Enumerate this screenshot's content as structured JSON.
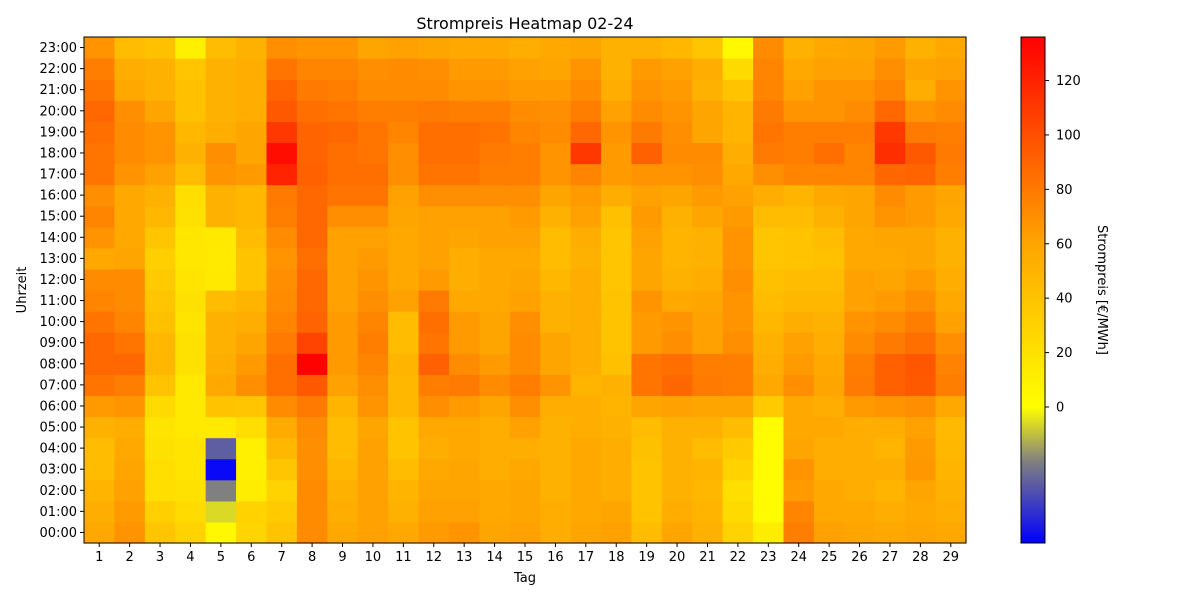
{
  "chart_data": {
    "type": "heatmap",
    "title": "Strompreis Heatmap 02-24",
    "xlabel": "Tag",
    "ylabel": "Uhrzeit",
    "colorbar_label": "Strompreis [€/MWh]",
    "colorbar_ticks": [
      "0",
      "20",
      "40",
      "60",
      "80",
      "100",
      "120"
    ],
    "colorbar_range": [
      -50,
      136
    ],
    "colormap": [
      "#0000ff",
      "#808080",
      "#ffff00",
      "#ffa500",
      "#ff0000"
    ],
    "colormap_stops": [
      -50,
      -20,
      0,
      60,
      136
    ],
    "x": [
      "1",
      "2",
      "3",
      "4",
      "5",
      "6",
      "7",
      "8",
      "9",
      "10",
      "11",
      "12",
      "13",
      "14",
      "15",
      "16",
      "17",
      "18",
      "19",
      "20",
      "21",
      "22",
      "23",
      "24",
      "25",
      "26",
      "27",
      "28",
      "29"
    ],
    "y": [
      "00:00",
      "01:00",
      "02:00",
      "03:00",
      "04:00",
      "05:00",
      "06:00",
      "07:00",
      "08:00",
      "09:00",
      "10:00",
      "11:00",
      "12:00",
      "13:00",
      "14:00",
      "15:00",
      "16:00",
      "17:00",
      "18:00",
      "19:00",
      "20:00",
      "21:00",
      "22:00",
      "23:00"
    ],
    "values": [
      [
        58,
        68,
        38,
        30,
        5,
        28,
        40,
        72,
        58,
        62,
        58,
        65,
        68,
        60,
        62,
        55,
        60,
        62,
        45,
        60,
        52,
        30,
        12,
        78,
        62,
        60,
        58,
        60,
        58
      ],
      [
        55,
        65,
        32,
        24,
        -6,
        30,
        35,
        72,
        55,
        62,
        52,
        62,
        62,
        58,
        60,
        55,
        58,
        60,
        40,
        55,
        50,
        25,
        3,
        75,
        58,
        58,
        55,
        58,
        55
      ],
      [
        50,
        62,
        22,
        20,
        -20,
        12,
        30,
        72,
        52,
        62,
        50,
        60,
        60,
        58,
        60,
        52,
        58,
        55,
        40,
        52,
        48,
        22,
        3,
        65,
        58,
        55,
        50,
        60,
        52
      ],
      [
        45,
        60,
        22,
        18,
        -48,
        10,
        38,
        70,
        48,
        62,
        45,
        58,
        60,
        55,
        58,
        52,
        58,
        55,
        40,
        52,
        50,
        30,
        3,
        68,
        55,
        55,
        55,
        66,
        50
      ],
      [
        45,
        58,
        20,
        18,
        -28,
        10,
        48,
        70,
        45,
        62,
        40,
        55,
        58,
        55,
        55,
        52,
        58,
        55,
        42,
        52,
        45,
        35,
        3,
        60,
        55,
        55,
        50,
        65,
        48
      ],
      [
        52,
        55,
        18,
        15,
        15,
        22,
        56,
        72,
        45,
        60,
        40,
        58,
        58,
        55,
        62,
        52,
        55,
        52,
        45,
        52,
        52,
        45,
        3,
        58,
        58,
        55,
        55,
        62,
        46
      ],
      [
        65,
        68,
        25,
        15,
        40,
        38,
        72,
        80,
        50,
        68,
        48,
        70,
        65,
        60,
        70,
        55,
        55,
        50,
        60,
        62,
        60,
        60,
        35,
        58,
        55,
        65,
        68,
        70,
        58
      ],
      [
        82,
        78,
        40,
        15,
        58,
        70,
        85,
        95,
        62,
        70,
        48,
        78,
        80,
        72,
        78,
        68,
        50,
        52,
        82,
        88,
        80,
        78,
        58,
        70,
        60,
        80,
        92,
        95,
        78
      ],
      [
        88,
        88,
        48,
        20,
        55,
        65,
        85,
        135,
        65,
        75,
        50,
        92,
        72,
        65,
        72,
        60,
        55,
        42,
        82,
        85,
        78,
        78,
        55,
        65,
        58,
        78,
        92,
        96,
        76
      ],
      [
        88,
        82,
        48,
        20,
        52,
        60,
        80,
        105,
        65,
        78,
        45,
        82,
        65,
        60,
        72,
        60,
        55,
        40,
        65,
        70,
        62,
        70,
        52,
        62,
        55,
        72,
        80,
        85,
        70
      ],
      [
        82,
        75,
        42,
        18,
        52,
        55,
        75,
        90,
        65,
        75,
        45,
        85,
        65,
        60,
        70,
        52,
        55,
        40,
        65,
        68,
        62,
        68,
        48,
        55,
        52,
        68,
        72,
        78,
        62
      ],
      [
        75,
        72,
        38,
        20,
        45,
        50,
        72,
        88,
        62,
        70,
        62,
        80,
        58,
        58,
        62,
        52,
        55,
        40,
        68,
        58,
        60,
        68,
        45,
        48,
        48,
        62,
        65,
        70,
        58
      ],
      [
        72,
        72,
        35,
        18,
        15,
        40,
        70,
        88,
        62,
        68,
        58,
        65,
        55,
        58,
        60,
        48,
        55,
        38,
        60,
        52,
        55,
        70,
        42,
        45,
        45,
        62,
        60,
        65,
        55
      ],
      [
        58,
        60,
        32,
        16,
        14,
        40,
        68,
        85,
        62,
        65,
        58,
        62,
        55,
        58,
        58,
        45,
        52,
        38,
        60,
        50,
        52,
        68,
        38,
        40,
        42,
        58,
        58,
        60,
        52
      ],
      [
        68,
        58,
        38,
        16,
        15,
        45,
        72,
        88,
        62,
        62,
        58,
        62,
        60,
        62,
        62,
        45,
        55,
        38,
        62,
        50,
        52,
        68,
        38,
        40,
        45,
        58,
        60,
        60,
        52
      ],
      [
        75,
        58,
        48,
        20,
        52,
        48,
        78,
        88,
        70,
        70,
        60,
        62,
        62,
        62,
        65,
        52,
        62,
        42,
        65,
        52,
        60,
        65,
        45,
        45,
        52,
        60,
        68,
        65,
        58
      ],
      [
        70,
        58,
        52,
        22,
        52,
        48,
        80,
        88,
        82,
        82,
        62,
        70,
        70,
        70,
        70,
        60,
        65,
        55,
        62,
        60,
        65,
        62,
        55,
        50,
        58,
        60,
        72,
        65,
        60
      ],
      [
        82,
        68,
        62,
        45,
        68,
        65,
        120,
        92,
        85,
        85,
        70,
        82,
        82,
        78,
        78,
        68,
        75,
        65,
        68,
        68,
        70,
        58,
        70,
        75,
        75,
        75,
        88,
        90,
        78
      ],
      [
        82,
        72,
        68,
        52,
        70,
        60,
        130,
        90,
        85,
        82,
        70,
        85,
        85,
        80,
        78,
        68,
        110,
        65,
        92,
        72,
        72,
        55,
        80,
        78,
        85,
        75,
        115,
        95,
        80
      ],
      [
        85,
        72,
        68,
        48,
        55,
        60,
        110,
        90,
        88,
        82,
        75,
        85,
        85,
        82,
        75,
        72,
        88,
        68,
        80,
        70,
        60,
        50,
        82,
        78,
        78,
        78,
        110,
        80,
        78
      ],
      [
        88,
        70,
        60,
        42,
        52,
        55,
        95,
        85,
        82,
        78,
        78,
        80,
        78,
        78,
        72,
        70,
        78,
        62,
        72,
        68,
        60,
        50,
        80,
        68,
        68,
        72,
        88,
        68,
        72
      ],
      [
        82,
        58,
        52,
        42,
        52,
        55,
        90,
        80,
        78,
        72,
        72,
        72,
        68,
        68,
        65,
        65,
        72,
        55,
        68,
        65,
        52,
        40,
        75,
        62,
        68,
        68,
        75,
        55,
        68
      ],
      [
        78,
        55,
        52,
        38,
        52,
        55,
        82,
        75,
        75,
        70,
        72,
        70,
        65,
        65,
        62,
        60,
        68,
        52,
        65,
        62,
        55,
        25,
        75,
        58,
        62,
        62,
        70,
        60,
        62
      ],
      [
        68,
        45,
        42,
        10,
        45,
        52,
        70,
        68,
        68,
        60,
        62,
        60,
        58,
        58,
        55,
        58,
        60,
        52,
        52,
        48,
        38,
        5,
        72,
        52,
        58,
        60,
        65,
        52,
        58
      ]
    ]
  }
}
